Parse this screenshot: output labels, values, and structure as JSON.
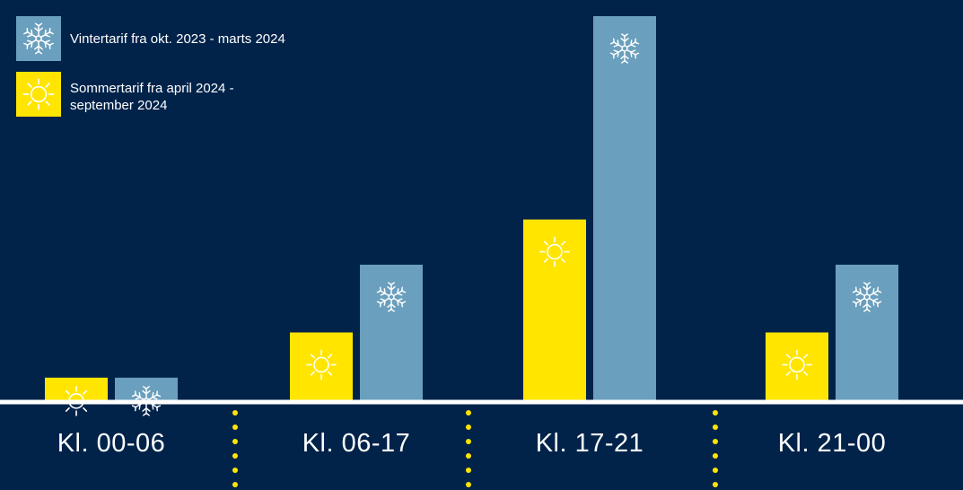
{
  "colors": {
    "background": "#01234a",
    "summer": "#ffe500",
    "winter": "#6a9fbd",
    "icon_on_summer": "#ffffff",
    "icon_on_winter": "#ffffff",
    "baseline": "#ffffff",
    "separator_dots": "#ffe500"
  },
  "legend": {
    "winter_label": "Vintertarif fra okt. 2023 - marts 2024",
    "summer_label": "Sommertarif fra april 2024 - september 2024",
    "winter_icon": "snowflake-icon",
    "summer_icon": "sun-icon"
  },
  "chart_data": {
    "type": "bar",
    "categories": [
      "Kl. 00-06",
      "Kl. 06-17",
      "Kl. 17-21",
      "Kl. 21-00"
    ],
    "series": [
      {
        "name": "Sommertarif fra april 2024 - september 2024",
        "values": [
          1,
          3,
          8,
          3
        ]
      },
      {
        "name": "Vintertarif fra okt. 2023 - marts 2024",
        "values": [
          1,
          6,
          17,
          6
        ]
      }
    ],
    "ylim": [
      0,
      17
    ],
    "grid": false,
    "legend_position": "top-left"
  }
}
